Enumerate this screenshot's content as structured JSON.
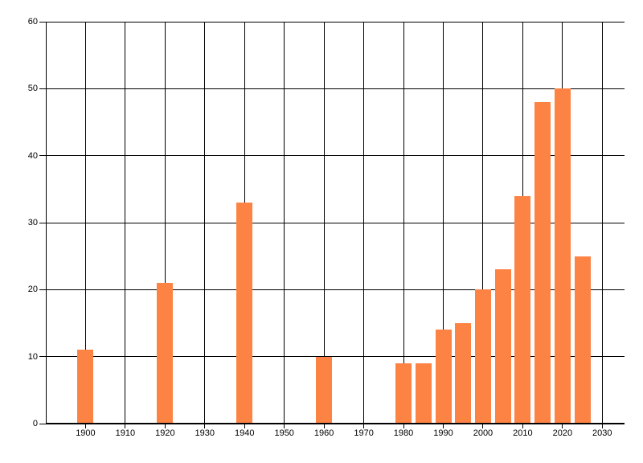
{
  "chart_data": {
    "type": "bar",
    "title": "",
    "xlabel": "",
    "ylabel": "",
    "x": [
      1900,
      1920,
      1940,
      1960,
      1980,
      1985,
      1990,
      1995,
      2000,
      2005,
      2010,
      2015,
      2020,
      2025
    ],
    "values": [
      11,
      21,
      33,
      10,
      9,
      9,
      14,
      15,
      20,
      23,
      34,
      48,
      50,
      25
    ],
    "x_tick_labels": [
      "1900",
      "1910",
      "1920",
      "1930",
      "1940",
      "1950",
      "1960",
      "1970",
      "1980",
      "1990",
      "2000",
      "2010",
      "2020",
      "2030"
    ],
    "x_tick_years": [
      1900,
      1910,
      1920,
      1930,
      1940,
      1950,
      1960,
      1970,
      1980,
      1990,
      2000,
      2010,
      2020,
      2030
    ],
    "y_tick_labels": [
      "0",
      "10",
      "20",
      "30",
      "40",
      "50",
      "60"
    ],
    "y_ticks": [
      0,
      10,
      20,
      30,
      40,
      50,
      60
    ],
    "xlim": [
      1890,
      2035.6
    ],
    "ylim": [
      0,
      60
    ],
    "grid": true,
    "legend": false,
    "colors": {
      "bar": "#fd8345",
      "grid": "#000000",
      "axis": "#000000",
      "tick_label": "#000000",
      "background": "#ffffff"
    }
  }
}
